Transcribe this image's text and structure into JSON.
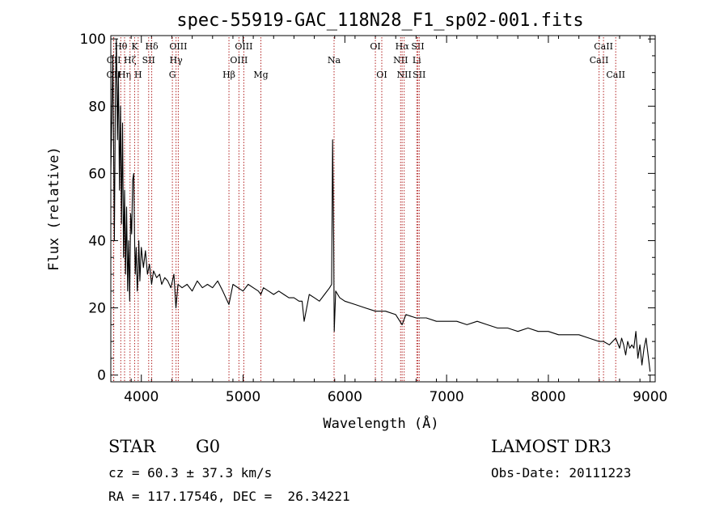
{
  "chart_data": {
    "type": "line",
    "title": "spec-55919-GAC_118N28_F1_sp02-001.fits",
    "xlabel": "Wavelength (Å)",
    "ylabel": "Flux (relative)",
    "xlim": [
      3700,
      9050
    ],
    "ylim": [
      -2,
      101
    ],
    "xticks": [
      4000,
      5000,
      6000,
      7000,
      8000,
      9000
    ],
    "yticks": [
      0,
      20,
      40,
      60,
      80,
      100
    ],
    "series": [
      {
        "name": "flux",
        "x": [
          3700,
          3720,
          3735,
          3745,
          3755,
          3765,
          3775,
          3785,
          3795,
          3805,
          3815,
          3825,
          3835,
          3845,
          3855,
          3865,
          3875,
          3885,
          3895,
          3905,
          3915,
          3925,
          3933,
          3940,
          3950,
          3960,
          3968,
          3975,
          3985,
          4000,
          4020,
          4040,
          4060,
          4080,
          4101,
          4120,
          4150,
          4180,
          4200,
          4230,
          4260,
          4290,
          4320,
          4340,
          4360,
          4400,
          4450,
          4500,
          4550,
          4600,
          4650,
          4700,
          4750,
          4800,
          4861,
          4900,
          4950,
          5000,
          5050,
          5100,
          5150,
          5175,
          5200,
          5250,
          5300,
          5350,
          5400,
          5450,
          5500,
          5550,
          5580,
          5600,
          5650,
          5700,
          5750,
          5800,
          5850,
          5870,
          5880,
          5890,
          5896,
          5910,
          5950,
          6000,
          6100,
          6200,
          6300,
          6400,
          6500,
          6563,
          6600,
          6700,
          6800,
          6900,
          7000,
          7100,
          7200,
          7300,
          7400,
          7500,
          7600,
          7700,
          7800,
          7900,
          8000,
          8100,
          8200,
          8300,
          8400,
          8498,
          8542,
          8600,
          8662,
          8700,
          8720,
          8740,
          8760,
          8780,
          8800,
          8820,
          8840,
          8860,
          8880,
          8900,
          8920,
          8940,
          8960,
          8980,
          9000
        ],
        "values": [
          60,
          95,
          40,
          85,
          100,
          70,
          90,
          55,
          80,
          45,
          75,
          35,
          55,
          30,
          50,
          25,
          40,
          22,
          48,
          42,
          58,
          60,
          42,
          30,
          38,
          25,
          30,
          40,
          28,
          38,
          32,
          37,
          30,
          33,
          27,
          31,
          29,
          30,
          27,
          29,
          28,
          26,
          30,
          20,
          27,
          26,
          27,
          25,
          28,
          26,
          27,
          26,
          28,
          25,
          21,
          27,
          26,
          25,
          27,
          26,
          25,
          24,
          26,
          25,
          24,
          25,
          24,
          23,
          23,
          22,
          22,
          16,
          24,
          23,
          22,
          24,
          26,
          27,
          70,
          40,
          13,
          25,
          23,
          22,
          21,
          20,
          19,
          19,
          18,
          15,
          18,
          17,
          17,
          16,
          16,
          16,
          15,
          16,
          15,
          14,
          14,
          13,
          14,
          13,
          13,
          12,
          12,
          12,
          11,
          10,
          10,
          9,
          11,
          8,
          11,
          9,
          6,
          10,
          8,
          9,
          8,
          13,
          5,
          9,
          3,
          8,
          11,
          6,
          1
        ]
      }
    ],
    "emission_lines": [
      {
        "label": "OII",
        "x": 3727,
        "row": 3
      },
      {
        "label": "OII",
        "x": 3729,
        "row": 2
      },
      {
        "label": "Hθ",
        "x": 3798,
        "row": 1
      },
      {
        "label": "Hη",
        "x": 3835,
        "row": 3
      },
      {
        "label": "Hζ",
        "x": 3889,
        "row": 2
      },
      {
        "label": "K",
        "x": 3934,
        "row": 1
      },
      {
        "label": "H",
        "x": 3969,
        "row": 3
      },
      {
        "label": "SII",
        "x": 4072,
        "row": 2
      },
      {
        "label": "Hδ",
        "x": 4102,
        "row": 1
      },
      {
        "label": "G",
        "x": 4305,
        "row": 3
      },
      {
        "label": "Hγ",
        "x": 4341,
        "row": 2
      },
      {
        "label": "OIII",
        "x": 4363,
        "row": 1
      },
      {
        "label": "Hβ",
        "x": 4861,
        "row": 3
      },
      {
        "label": "OIII",
        "x": 4959,
        "row": 2
      },
      {
        "label": "OIII",
        "x": 5007,
        "row": 1
      },
      {
        "label": "Mg",
        "x": 5175,
        "row": 3
      },
      {
        "label": "Na",
        "x": 5894,
        "row": 2
      },
      {
        "label": "OI",
        "x": 6300,
        "row": 1
      },
      {
        "label": "OI",
        "x": 6363,
        "row": 3
      },
      {
        "label": "NII",
        "x": 6548,
        "row": 2
      },
      {
        "label": "Hα",
        "x": 6563,
        "row": 1
      },
      {
        "label": "NII",
        "x": 6583,
        "row": 3
      },
      {
        "label": "Li",
        "x": 6707,
        "row": 2
      },
      {
        "label": "SII",
        "x": 6717,
        "row": 1
      },
      {
        "label": "SII",
        "x": 6731,
        "row": 3
      },
      {
        "label": "CaII",
        "x": 8498,
        "row": 2
      },
      {
        "label": "CaII",
        "x": 8542,
        "row": 1
      },
      {
        "label": "CaII",
        "x": 8662,
        "row": 3
      }
    ],
    "line_color": "#b22222"
  },
  "info": {
    "class": "STAR",
    "subclass": "G0",
    "survey": "LAMOST DR3",
    "cz": "cz = 60.3 ± 37.3 km/s",
    "obs_date": "Obs-Date: 20111223",
    "coords": "RA = 117.17546, DEC =  26.34221"
  }
}
